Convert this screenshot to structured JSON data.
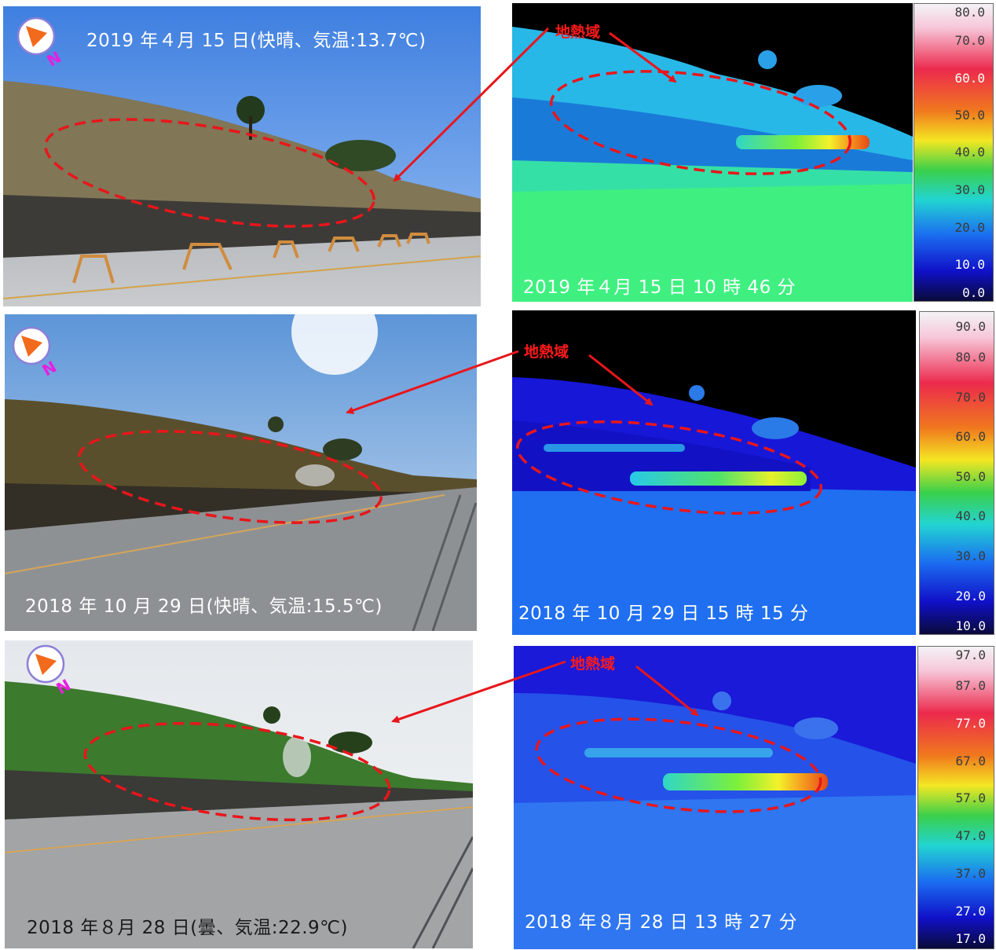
{
  "photos": [
    {
      "caption": "2019 年４月 15 日(快晴、気温:13.7℃)"
    },
    {
      "caption": "2018 年 10 月 29 日(快晴、気温:15.5℃)"
    },
    {
      "caption": "2018 年８月 28 日(曇、気温:22.9℃)"
    }
  ],
  "thermals": [
    {
      "timestamp": "2019 年４月 15 日 10 時 46 分",
      "label": "地熱域",
      "scale": [
        "80.0",
        "70.0",
        "60.0",
        "50.0",
        "40.0",
        "30.0",
        "20.0",
        "10.0",
        "0.0"
      ]
    },
    {
      "timestamp": "2018 年 10 月 29 日 15 時 15 分",
      "label": "地熱域",
      "scale": [
        "90.0",
        "80.0",
        "70.0",
        "60.0",
        "50.0",
        "40.0",
        "30.0",
        "20.0",
        "10.0"
      ]
    },
    {
      "timestamp": "2018 年８月 28 日 13 時 27 分",
      "label": "地熱域",
      "scale": [
        "97.0",
        "87.0",
        "77.0",
        "67.0",
        "57.0",
        "47.0",
        "37.0",
        "27.0",
        "17.0"
      ]
    }
  ],
  "compass_letter": "N",
  "colors": {
    "annotation_red": "#e8161b",
    "compass_orange": "#f26a1b",
    "compass_magenta": "#e81ee0"
  }
}
